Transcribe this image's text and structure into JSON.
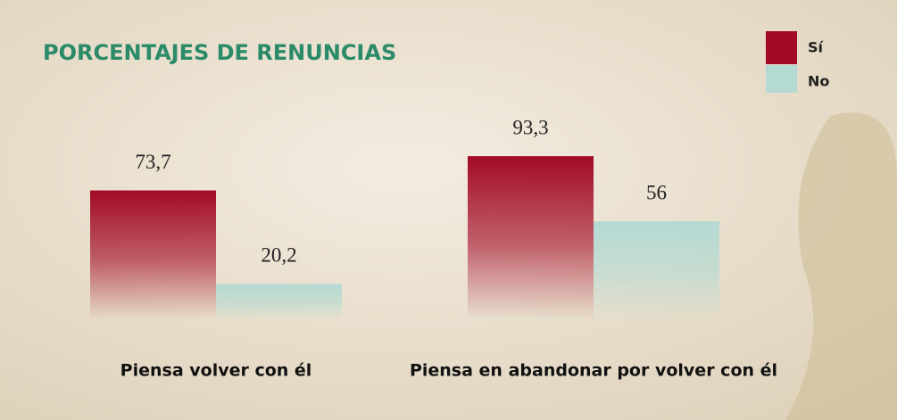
{
  "chart_data": {
    "type": "bar",
    "title": "PORCENTAJES DE RENUNCIAS",
    "categories": [
      "Piensa volver con él",
      "Piensa en abandonar por volver con él"
    ],
    "series": [
      {
        "name": "Sí",
        "color": "#a30a26",
        "values": [
          73.7,
          93.3
        ],
        "value_labels": [
          "73,7",
          "93,3"
        ]
      },
      {
        "name": "No",
        "color": "#b4dad3",
        "values": [
          20.2,
          56
        ],
        "value_labels": [
          "20,2",
          "56"
        ]
      }
    ],
    "legend": "top-right"
  }
}
